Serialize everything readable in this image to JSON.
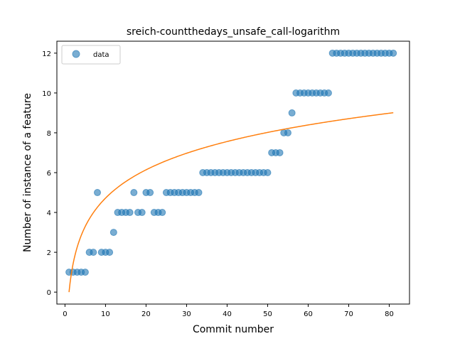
{
  "chart_data": {
    "type": "scatter",
    "title": "sreich-countthedays_unsafe_call-logarithm",
    "xlabel": "Commit number",
    "ylabel": "Number of instance of a feature",
    "xlim": [
      -2.0,
      85.0
    ],
    "ylim": [
      -0.6,
      12.6
    ],
    "xticks": [
      0,
      10,
      20,
      30,
      40,
      50,
      60,
      70,
      80
    ],
    "yticks": [
      0,
      2,
      4,
      6,
      8,
      10,
      12
    ],
    "legend": {
      "placement": "upper-left",
      "entries": [
        "data"
      ]
    },
    "grid": false,
    "colors": {
      "data": "#1f77b4",
      "fit": "#ff7f0e"
    },
    "series": [
      {
        "name": "data",
        "kind": "scatter",
        "x": [
          1,
          2,
          3,
          4,
          5,
          6,
          7,
          8,
          9,
          10,
          11,
          12,
          13,
          14,
          15,
          16,
          17,
          18,
          19,
          20,
          21,
          22,
          23,
          24,
          25,
          26,
          27,
          28,
          29,
          30,
          31,
          32,
          33,
          34,
          35,
          36,
          37,
          38,
          39,
          40,
          41,
          42,
          43,
          44,
          45,
          46,
          47,
          48,
          49,
          50,
          51,
          52,
          53,
          54,
          55,
          56,
          57,
          58,
          59,
          60,
          61,
          62,
          63,
          64,
          65,
          66,
          67,
          68,
          69,
          70,
          71,
          72,
          73,
          74,
          75,
          76,
          77,
          78,
          79,
          80,
          81
        ],
        "y": [
          1,
          1,
          1,
          1,
          1,
          2,
          2,
          5,
          2,
          2,
          2,
          3,
          4,
          4,
          4,
          4,
          5,
          4,
          4,
          5,
          5,
          4,
          4,
          4,
          5,
          5,
          5,
          5,
          5,
          5,
          5,
          5,
          5,
          6,
          6,
          6,
          6,
          6,
          6,
          6,
          6,
          6,
          6,
          6,
          6,
          6,
          6,
          6,
          6,
          6,
          7,
          7,
          7,
          8,
          8,
          9,
          10,
          10,
          10,
          10,
          10,
          10,
          10,
          10,
          10,
          12,
          12,
          12,
          12,
          12,
          12,
          12,
          12,
          12,
          12,
          12,
          12,
          12,
          12,
          12,
          12
        ]
      },
      {
        "kind": "line",
        "function": "y = 2.05 * ln(x)",
        "x_range": [
          1,
          81
        ]
      }
    ]
  }
}
